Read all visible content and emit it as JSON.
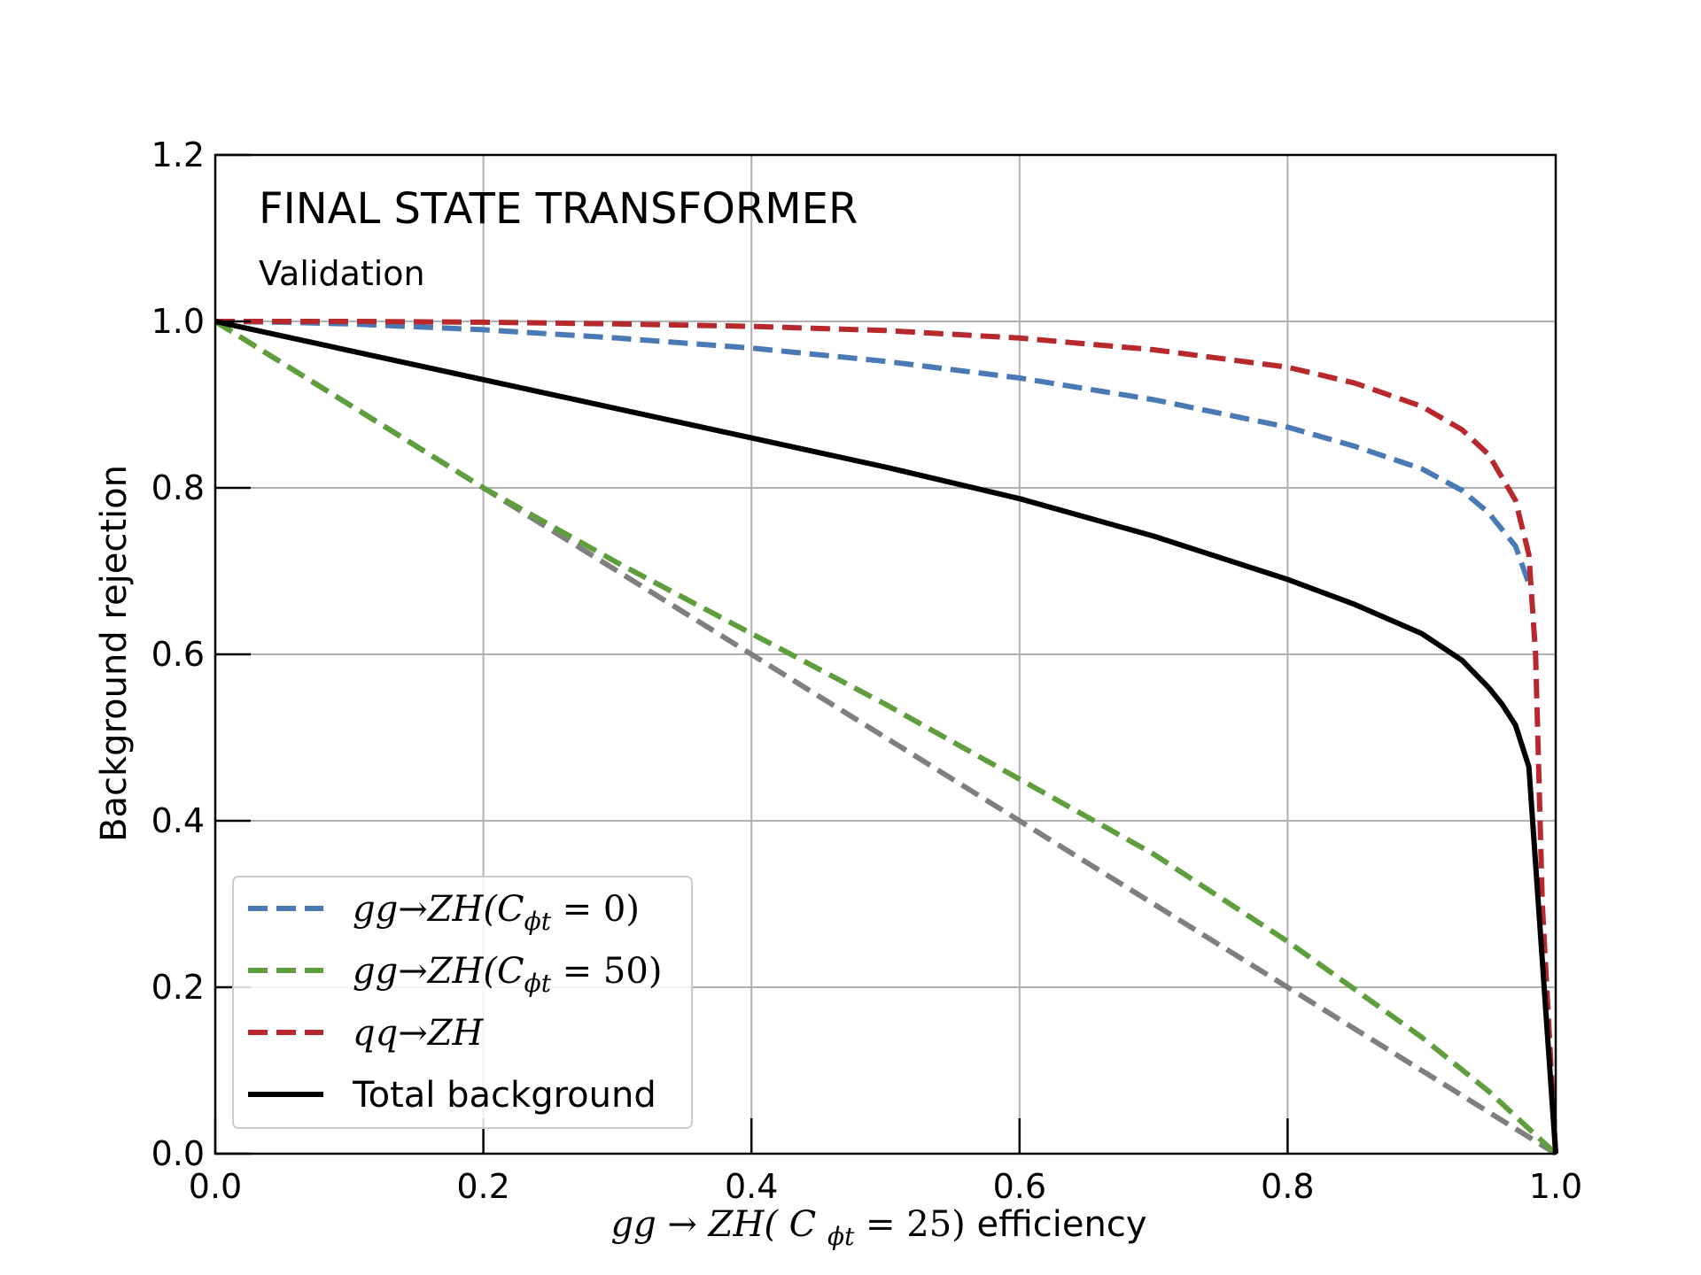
{
  "chart_data": {
    "type": "line",
    "annotation_title": "FINAL STATE TRANSFORMER",
    "annotation_subtitle": "Validation",
    "xlabel": {
      "prefix": "gg",
      "arrow": "→",
      "process": "ZH(",
      "coef": "C",
      "coef_sub": "ϕt",
      "eq": " = 25)",
      "suffix": " efficiency"
    },
    "ylabel": "Background rejection",
    "xlim": [
      0.0,
      1.0
    ],
    "ylim": [
      0.0,
      1.2
    ],
    "xticks": [
      "0.0",
      "0.2",
      "0.4",
      "0.6",
      "0.8",
      "1.0"
    ],
    "yticks": [
      "0.0",
      "0.2",
      "0.4",
      "0.6",
      "0.8",
      "1.0",
      "1.2"
    ],
    "grid": true,
    "legend_position": "lower-left",
    "series": [
      {
        "name": "gg → ZH(Cϕt = 0)",
        "legend": {
          "pre": "gg",
          "arrow": "→",
          "proc": "ZH(",
          "coef": "C",
          "sub": "ϕt",
          "post": " = 0)"
        },
        "color": "#4a7ab5",
        "dash": "dashed",
        "x": [
          0.0,
          0.05,
          0.1,
          0.2,
          0.3,
          0.4,
          0.5,
          0.6,
          0.7,
          0.8,
          0.85,
          0.9,
          0.93,
          0.95,
          0.97,
          0.98
        ],
        "y": [
          1.0,
          0.999,
          0.997,
          0.99,
          0.98,
          0.968,
          0.952,
          0.932,
          0.906,
          0.873,
          0.85,
          0.823,
          0.797,
          0.77,
          0.73,
          0.685
        ]
      },
      {
        "name": "gg → ZH(Cϕt = 50)",
        "legend": {
          "pre": "gg",
          "arrow": "→",
          "proc": "ZH(",
          "coef": "C",
          "sub": "ϕt",
          "post": " = 50)"
        },
        "color": "#5e9e3c",
        "dash": "dashed",
        "x": [
          0.0,
          0.1,
          0.2,
          0.3,
          0.4,
          0.5,
          0.6,
          0.7,
          0.8,
          0.9,
          0.95,
          1.0
        ],
        "y": [
          1.0,
          0.9,
          0.8,
          0.71,
          0.625,
          0.54,
          0.45,
          0.36,
          0.255,
          0.14,
          0.075,
          0.0
        ]
      },
      {
        "name": "qq → ZH",
        "legend": {
          "pre": "qq",
          "arrow": "→",
          "proc": "ZH",
          "coef": "",
          "sub": "",
          "post": ""
        },
        "color": "#b8292e",
        "dash": "dashed",
        "x": [
          0.0,
          0.1,
          0.2,
          0.3,
          0.4,
          0.5,
          0.6,
          0.7,
          0.8,
          0.85,
          0.9,
          0.93,
          0.95,
          0.97,
          0.98,
          0.985,
          0.99,
          1.0
        ],
        "y": [
          1.0,
          1.0,
          0.999,
          0.997,
          0.994,
          0.989,
          0.98,
          0.966,
          0.945,
          0.926,
          0.898,
          0.87,
          0.84,
          0.785,
          0.72,
          0.6,
          0.3,
          0.0
        ]
      },
      {
        "name": "Total background",
        "legend": {
          "text": "Total background"
        },
        "color": "#000000",
        "dash": "solid",
        "x": [
          0.0,
          0.1,
          0.2,
          0.3,
          0.4,
          0.5,
          0.6,
          0.7,
          0.8,
          0.85,
          0.9,
          0.93,
          0.95,
          0.96,
          0.97,
          0.98,
          1.0
        ],
        "y": [
          1.0,
          0.965,
          0.93,
          0.895,
          0.86,
          0.825,
          0.787,
          0.742,
          0.69,
          0.66,
          0.625,
          0.593,
          0.56,
          0.54,
          0.515,
          0.465,
          0.0
        ]
      },
      {
        "name": "",
        "color": "#7f7f7f",
        "dash": "dashed",
        "x": [
          0.0,
          1.0
        ],
        "y": [
          1.0,
          0.0
        ]
      }
    ]
  }
}
